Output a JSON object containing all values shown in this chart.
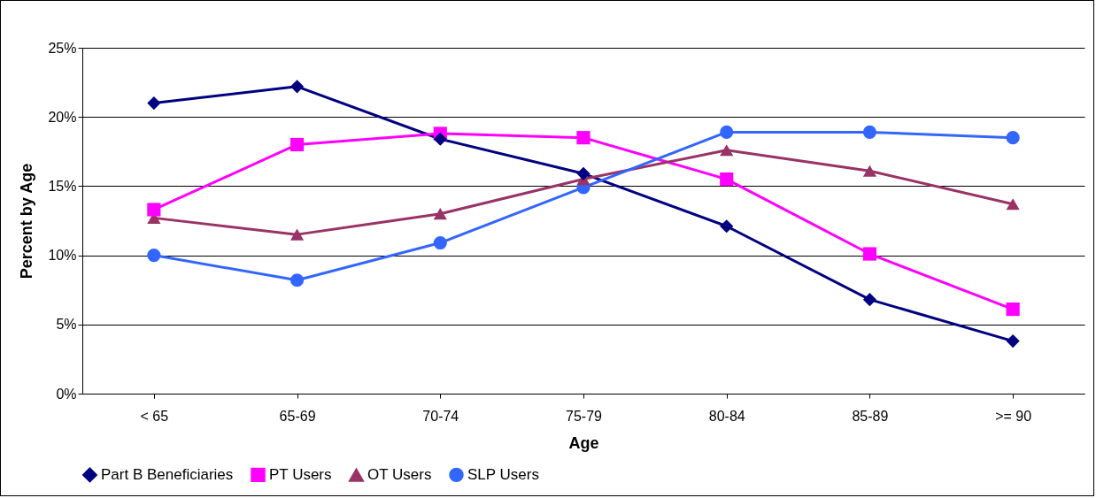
{
  "chart_data": {
    "type": "line",
    "xlabel": "Age",
    "ylabel": "Percent by Age",
    "categories": [
      "< 65",
      "65-69",
      "70-74",
      "75-79",
      "80-84",
      "85-89",
      ">= 90"
    ],
    "series": [
      {
        "name": "Part B Beneficiaries",
        "color": "#000080",
        "marker": "diamond",
        "values": [
          21.0,
          22.2,
          18.4,
          15.9,
          12.1,
          6.8,
          3.8
        ]
      },
      {
        "name": "PT Users",
        "color": "#ff00ff",
        "marker": "square",
        "values": [
          13.3,
          18.0,
          18.8,
          18.5,
          15.5,
          10.1,
          6.1
        ]
      },
      {
        "name": "OT Users",
        "color": "#993366",
        "marker": "triangle",
        "values": [
          12.7,
          11.5,
          13.0,
          15.5,
          17.6,
          16.1,
          13.7
        ]
      },
      {
        "name": "SLP Users",
        "color": "#3366ff",
        "marker": "circle",
        "values": [
          10.0,
          8.2,
          10.9,
          14.9,
          18.9,
          18.9,
          18.5
        ]
      }
    ],
    "ylim": [
      0,
      25
    ],
    "yticks": [
      {
        "value": 0,
        "label": "0%"
      },
      {
        "value": 5,
        "label": "5%"
      },
      {
        "value": 10,
        "label": "10%"
      },
      {
        "value": 15,
        "label": "15%"
      },
      {
        "value": 20,
        "label": "20%"
      },
      {
        "value": 25,
        "label": "25%"
      }
    ],
    "grid": "y",
    "legend": "bottom",
    "line_style": "solid"
  }
}
